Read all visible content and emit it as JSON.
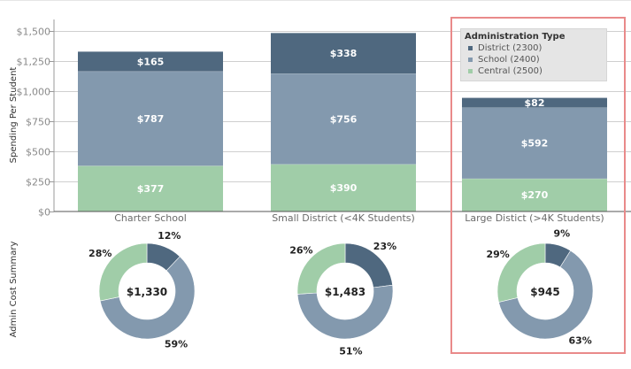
{
  "chart_data": [
    {
      "type": "bar",
      "stacked": true,
      "title": "",
      "xlabel": "",
      "ylabel": "Spending Per Student",
      "ylim": [
        0,
        1500
      ],
      "yticks": [
        0,
        250,
        500,
        750,
        1000,
        1250,
        1500
      ],
      "ytick_labels": [
        "$0",
        "$250",
        "$500",
        "$750",
        "$1,000",
        "$1,250",
        "$1,500"
      ],
      "grid": true,
      "categories": [
        "Charter School",
        "Small District (<4K Students)",
        "Large Distict (>4K Students)"
      ],
      "series": [
        {
          "name": "Central (2500)",
          "color": "#a0cda8",
          "values": [
            377,
            390,
            270
          ],
          "labels": [
            "$377",
            "$390",
            "$270"
          ]
        },
        {
          "name": "School (2400)",
          "color": "#8399ae",
          "values": [
            787,
            756,
            592
          ],
          "labels": [
            "$787",
            "$756",
            "$592"
          ]
        },
        {
          "name": "District (2300)",
          "color": "#4f687f",
          "values": [
            165,
            338,
            82
          ],
          "labels": [
            "$165",
            "$338",
            "$82"
          ]
        }
      ],
      "legend": {
        "title": "Administration Type",
        "placement": "top-right",
        "items": [
          {
            "label": "District (2300)",
            "color": "#4f687f"
          },
          {
            "label": "School (2400)",
            "color": "#8399ae"
          },
          {
            "label": "Central (2500)",
            "color": "#a0cda8"
          }
        ]
      }
    },
    {
      "type": "pie",
      "donut": true,
      "ylabel": "Admin Cost Summary",
      "charts": [
        {
          "category": "Charter School",
          "total_label": "$1,330",
          "slices": [
            {
              "name": "District (2300)",
              "value": 12,
              "label": "12%",
              "color": "#4f687f"
            },
            {
              "name": "School (2400)",
              "value": 59,
              "label": "59%",
              "color": "#8399ae"
            },
            {
              "name": "Central (2500)",
              "value": 28,
              "label": "28%",
              "color": "#a0cda8"
            }
          ]
        },
        {
          "category": "Small District (<4K Students)",
          "total_label": "$1,483",
          "slices": [
            {
              "name": "District (2300)",
              "value": 23,
              "label": "23%",
              "color": "#4f687f"
            },
            {
              "name": "School (2400)",
              "value": 51,
              "label": "51%",
              "color": "#8399ae"
            },
            {
              "name": "Central (2500)",
              "value": 26,
              "label": "26%",
              "color": "#a0cda8"
            }
          ]
        },
        {
          "category": "Large Distict (>4K Students)",
          "total_label": "$945",
          "slices": [
            {
              "name": "District (2300)",
              "value": 9,
              "label": "9%",
              "color": "#4f687f"
            },
            {
              "name": "School (2400)",
              "value": 63,
              "label": "63%",
              "color": "#8399ae"
            },
            {
              "name": "Central (2500)",
              "value": 29,
              "label": "29%",
              "color": "#a0cda8"
            }
          ]
        }
      ]
    }
  ],
  "highlight": {
    "category": "Large Distict (>4K Students)",
    "color": "#e98a8a"
  },
  "axis_labels": {
    "bar_y": "Spending Per Student",
    "donut_y": "Admin Cost Summary"
  }
}
